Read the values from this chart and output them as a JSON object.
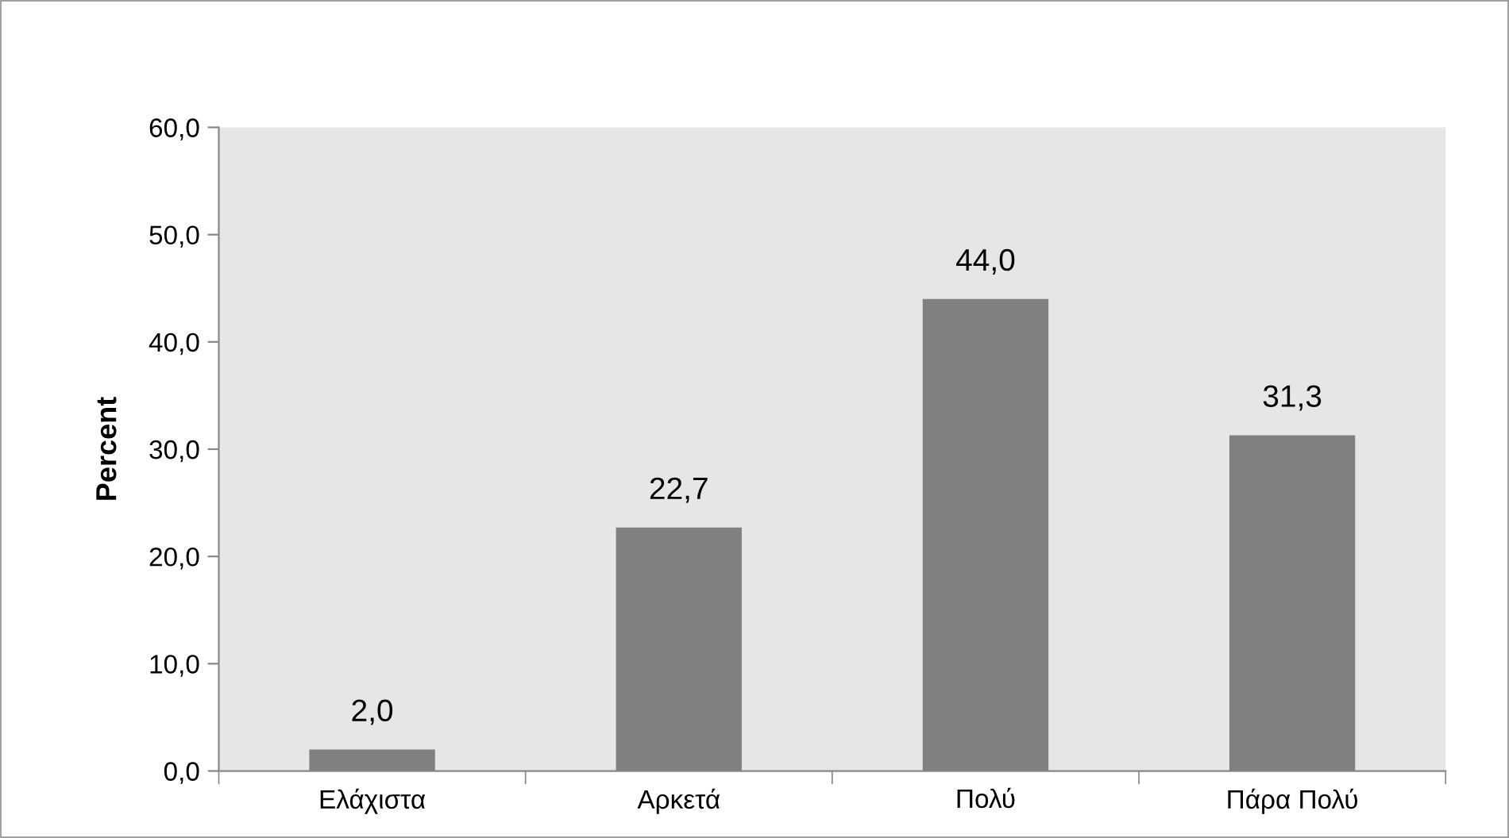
{
  "chart_data": {
    "type": "bar",
    "ylabel": "Percent",
    "categories": [
      "Ελάχιστα",
      "Αρκετά",
      "Πολύ",
      "Πάρα Πολύ"
    ],
    "values": [
      2.0,
      22.7,
      44.0,
      31.3
    ],
    "value_labels": [
      "2,0",
      "22,7",
      "44,0",
      "31,3"
    ],
    "color": "#808080",
    "ylim": [
      0,
      60
    ],
    "yticks": [
      {
        "value": 0,
        "label": "0,0"
      },
      {
        "value": 10,
        "label": "10,0"
      },
      {
        "value": 20,
        "label": "20,0"
      },
      {
        "value": 30,
        "label": "30,0"
      },
      {
        "value": 40,
        "label": "40,0"
      },
      {
        "value": 50,
        "label": "50,0"
      },
      {
        "value": 60,
        "label": "60,0"
      }
    ],
    "grid": false,
    "legend": false
  }
}
